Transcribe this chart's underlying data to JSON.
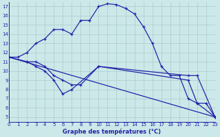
{
  "xlabel": "Graphe des températures (°C)",
  "background_color": "#cce8e8",
  "grid_color": "#aacccc",
  "line_color": "#2222aa",
  "xlim": [
    0,
    23
  ],
  "ylim": [
    4.5,
    17.5
  ],
  "yticks": [
    5,
    6,
    7,
    8,
    9,
    10,
    11,
    12,
    13,
    14,
    15,
    16,
    17
  ],
  "xticks": [
    0,
    1,
    2,
    3,
    4,
    5,
    6,
    7,
    8,
    9,
    10,
    11,
    12,
    13,
    14,
    15,
    16,
    17,
    18,
    19,
    20,
    21,
    22,
    23
  ],
  "line1_x": [
    0,
    1,
    2,
    3,
    4,
    5,
    6,
    7,
    8,
    9,
    10,
    11,
    12,
    13,
    14,
    15,
    16,
    17,
    18,
    19,
    20,
    21,
    22,
    23
  ],
  "line1_y": [
    11.5,
    11.5,
    12.0,
    13.0,
    13.5,
    14.5,
    14.5,
    14.0,
    15.5,
    15.5,
    17.0,
    17.3,
    17.2,
    16.8,
    16.2,
    14.8,
    13.0,
    10.5,
    9.5,
    9.5,
    7.0,
    6.5,
    6.5,
    5.0
  ],
  "line2_x": [
    0,
    2,
    3,
    4,
    5,
    6,
    7,
    8,
    10,
    20,
    21,
    23
  ],
  "line2_y": [
    11.5,
    11.0,
    11.0,
    10.5,
    9.5,
    9.0,
    8.5,
    8.5,
    10.5,
    9.5,
    9.5,
    5.0
  ],
  "line3_x": [
    0,
    2,
    3,
    4,
    5,
    6,
    7,
    10,
    20,
    21,
    23
  ],
  "line3_y": [
    11.5,
    11.0,
    10.5,
    10.0,
    9.0,
    7.5,
    8.0,
    10.5,
    9.0,
    6.5,
    5.0
  ],
  "line4_x": [
    0,
    23
  ],
  "line4_y": [
    11.5,
    5.0
  ]
}
